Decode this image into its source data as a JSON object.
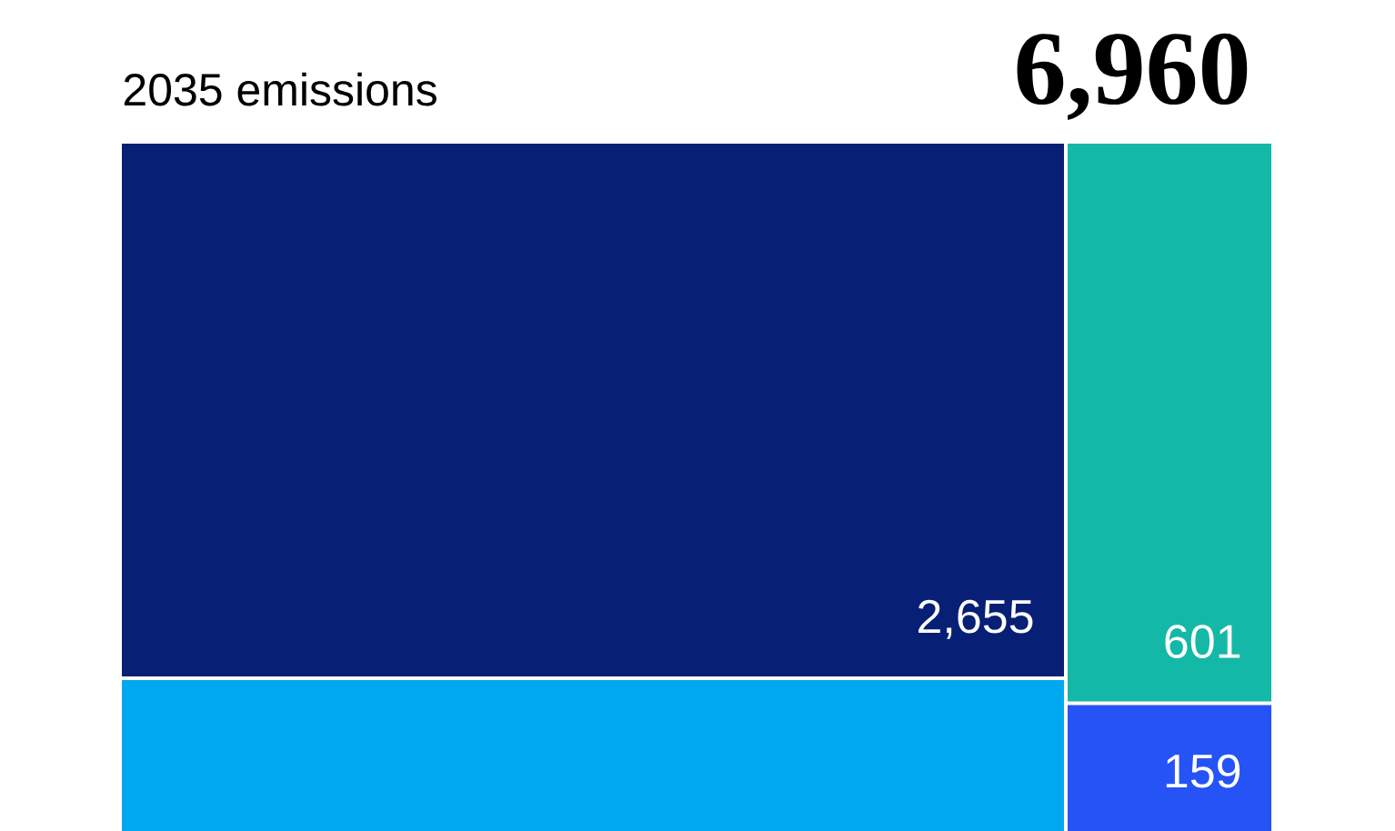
{
  "chart_data": {
    "type": "other",
    "title": "6,960",
    "subtitle": "2035 emissions",
    "values": [
      2655,
      null,
      601,
      159
    ],
    "value_labels": [
      "2,655",
      null,
      "601",
      "159"
    ],
    "colors": [
      "#081f76",
      "#00a8f0",
      "#14b8a6",
      "#2653f5"
    ]
  }
}
